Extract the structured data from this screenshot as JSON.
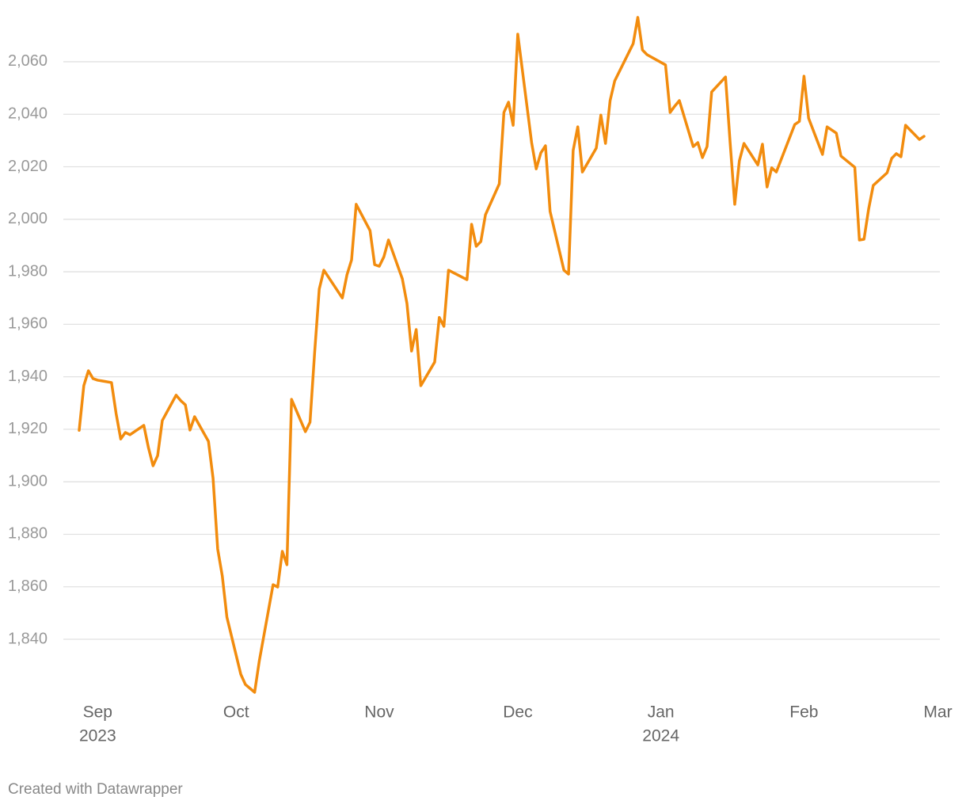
{
  "chart_data": {
    "type": "line",
    "color": "#f28c0e",
    "grid": true,
    "x": [
      "2023-08-28",
      "2023-08-29",
      "2023-08-30",
      "2023-08-31",
      "2023-09-01",
      "2023-09-04",
      "2023-09-05",
      "2023-09-06",
      "2023-09-07",
      "2023-09-08",
      "2023-09-11",
      "2023-09-12",
      "2023-09-13",
      "2023-09-14",
      "2023-09-15",
      "2023-09-18",
      "2023-09-19",
      "2023-09-20",
      "2023-09-21",
      "2023-09-22",
      "2023-09-25",
      "2023-09-26",
      "2023-09-27",
      "2023-09-28",
      "2023-09-29",
      "2023-10-02",
      "2023-10-03",
      "2023-10-04",
      "2023-10-05",
      "2023-10-06",
      "2023-10-09",
      "2023-10-10",
      "2023-10-11",
      "2023-10-12",
      "2023-10-13",
      "2023-10-16",
      "2023-10-17",
      "2023-10-18",
      "2023-10-19",
      "2023-10-20",
      "2023-10-24",
      "2023-10-25",
      "2023-10-26",
      "2023-10-27",
      "2023-10-30",
      "2023-10-31",
      "2023-11-01",
      "2023-11-02",
      "2023-11-03",
      "2023-11-06",
      "2023-11-07",
      "2023-11-08",
      "2023-11-09",
      "2023-11-10",
      "2023-11-13",
      "2023-11-14",
      "2023-11-15",
      "2023-11-16",
      "2023-11-20",
      "2023-11-21",
      "2023-11-22",
      "2023-11-23",
      "2023-11-24",
      "2023-11-27",
      "2023-11-28",
      "2023-11-29",
      "2023-11-30",
      "2023-12-01",
      "2023-12-04",
      "2023-12-05",
      "2023-12-06",
      "2023-12-07",
      "2023-12-08",
      "2023-12-11",
      "2023-12-12",
      "2023-12-13",
      "2023-12-14",
      "2023-12-15",
      "2023-12-18",
      "2023-12-19",
      "2023-12-20",
      "2023-12-21",
      "2023-12-22",
      "2023-12-26",
      "2023-12-27",
      "2023-12-28",
      "2023-12-29",
      "2024-01-02",
      "2024-01-03",
      "2024-01-04",
      "2024-01-05",
      "2024-01-08",
      "2024-01-09",
      "2024-01-10",
      "2024-01-11",
      "2024-01-12",
      "2024-01-15",
      "2024-01-16",
      "2024-01-17",
      "2024-01-18",
      "2024-01-19",
      "2024-01-22",
      "2024-01-23",
      "2024-01-24",
      "2024-01-25",
      "2024-01-26",
      "2024-01-30",
      "2024-01-31",
      "2024-02-01",
      "2024-02-02",
      "2024-02-05",
      "2024-02-06",
      "2024-02-07",
      "2024-02-08",
      "2024-02-09",
      "2024-02-12",
      "2024-02-13",
      "2024-02-14",
      "2024-02-15",
      "2024-02-16",
      "2024-02-19",
      "2024-02-20",
      "2024-02-21",
      "2024-02-22",
      "2024-02-23",
      "2024-02-26",
      "2024-02-27"
    ],
    "values": [
      1919.6,
      1936.6,
      1942.3,
      1939.3,
      1938.7,
      1937.8,
      1926,
      1916.3,
      1918.8,
      1917.9,
      1921.5,
      1913,
      1906.1,
      1910,
      1923.3,
      1933,
      1930.9,
      1929.3,
      1919.7,
      1924.8,
      1915.4,
      1901.3,
      1874.4,
      1864.1,
      1848.4,
      1826.7,
      1822.8,
      1821.3,
      1819.8,
      1831.6,
      1860.8,
      1859.9,
      1873.5,
      1868.4,
      1931.4,
      1919.1,
      1922.7,
      1949.2,
      1973.4,
      1980.6,
      1970,
      1978.8,
      1984.5,
      2005.7,
      1995.7,
      1982.7,
      1982.1,
      1985.7,
      1992.1,
      1977.3,
      1967.9,
      1949.8,
      1958,
      1936.6,
      1945.6,
      1962.6,
      1959.2,
      1980.6,
      1977,
      1998.1,
      1989.7,
      1991.5,
      2001.7,
      2013.5,
      2040.7,
      2044.6,
      2035.8,
      2070.5,
      2029.2,
      2019.2,
      2025.3,
      2028,
      2003,
      1980.6,
      1979.1,
      2026.2,
      2035.2,
      2018,
      2027.1,
      2039.7,
      2028.9,
      2045.2,
      2052.7,
      2066.9,
      2076.9,
      2064.5,
      2062.7,
      2058.8,
      2040.7,
      2043.1,
      2045.2,
      2027.7,
      2029.2,
      2023.5,
      2027.7,
      2048.5,
      2054.2,
      2029.2,
      2005.7,
      2022.3,
      2028.9,
      2020.7,
      2028.6,
      2012.3,
      2019.6,
      2018,
      2036.1,
      2037.3,
      2054.5,
      2038.5,
      2024.7,
      2035.2,
      2034,
      2032.8,
      2024.1,
      2019.8,
      1992.1,
      1992.4,
      2003.9,
      2012.9,
      2017.7,
      2023.2,
      2025,
      2023.8,
      2035.8,
      2030.4,
      2031.6
    ],
    "xlim": [
      "2023-08-28",
      "2024-02-27"
    ],
    "xticks": [
      {
        "value": "2023-09-01",
        "label": "Sep",
        "year": "2023"
      },
      {
        "value": "2023-10-01",
        "label": "Oct"
      },
      {
        "value": "2023-11-01",
        "label": "Nov"
      },
      {
        "value": "2023-12-01",
        "label": "Dec"
      },
      {
        "value": "2024-01-01",
        "label": "Jan",
        "year": "2024"
      },
      {
        "value": "2024-02-01",
        "label": "Feb"
      },
      {
        "value": "2024-03-01",
        "label": "Mar"
      }
    ],
    "ylim": [
      1820,
      2078
    ],
    "yticks": [
      {
        "value": 1840,
        "label": "1,840"
      },
      {
        "value": 1860,
        "label": "1,860"
      },
      {
        "value": 1880,
        "label": "1,880"
      },
      {
        "value": 1900,
        "label": "1,900"
      },
      {
        "value": 1920,
        "label": "1,920"
      },
      {
        "value": 1940,
        "label": "1,940"
      },
      {
        "value": 1960,
        "label": "1,960"
      },
      {
        "value": 1980,
        "label": "1,980"
      },
      {
        "value": 2000,
        "label": "2,000"
      },
      {
        "value": 2020,
        "label": "2,020"
      },
      {
        "value": 2040,
        "label": "2,040"
      },
      {
        "value": 2060,
        "label": "2,060"
      }
    ],
    "credit": "Created with Datawrapper"
  }
}
